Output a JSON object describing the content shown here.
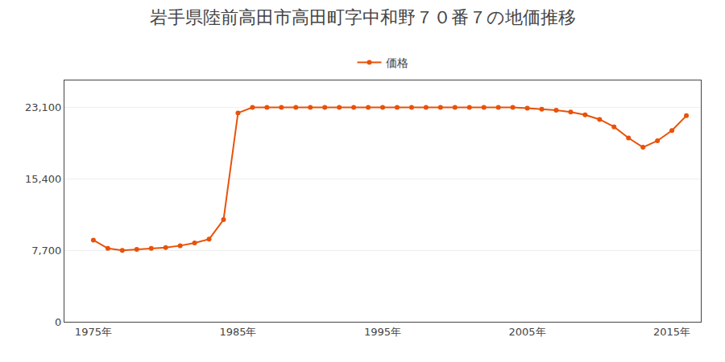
{
  "chart_data": {
    "type": "line",
    "title": "岩手県陸前高田市高田町字中和野７０番７の地価推移",
    "x": [
      1975,
      1976,
      1977,
      1978,
      1979,
      1980,
      1981,
      1982,
      1983,
      1984,
      1985,
      1986,
      1987,
      1988,
      1989,
      1990,
      1991,
      1992,
      1993,
      1994,
      1995,
      1996,
      1997,
      1998,
      1999,
      2000,
      2001,
      2002,
      2003,
      2004,
      2005,
      2006,
      2007,
      2008,
      2009,
      2010,
      2011,
      2012,
      2013,
      2014,
      2015,
      2016
    ],
    "series": [
      {
        "name": "価格",
        "color": "#e8520a",
        "marker": "circle",
        "values": [
          8800,
          7900,
          7700,
          7800,
          7900,
          8000,
          8200,
          8500,
          8900,
          11000,
          22500,
          23100,
          23100,
          23100,
          23100,
          23100,
          23100,
          23100,
          23100,
          23100,
          23100,
          23100,
          23100,
          23100,
          23100,
          23100,
          23100,
          23100,
          23100,
          23100,
          23000,
          22900,
          22800,
          22600,
          22300,
          21800,
          21000,
          19800,
          18800,
          19500,
          20600,
          22200
        ]
      }
    ],
    "xlim": [
      1973,
      2017
    ],
    "xticks": [
      {
        "value": 1975,
        "label": "1975年"
      },
      {
        "value": 1985,
        "label": "1985年"
      },
      {
        "value": 1995,
        "label": "1995年"
      },
      {
        "value": 2005,
        "label": "2005年"
      },
      {
        "value": 2015,
        "label": "2015年"
      }
    ],
    "ylim": [
      0,
      26000
    ],
    "yticks": [
      0,
      {
        "value": 7700,
        "label": "7,700"
      },
      {
        "value": 15400,
        "label": "15,400"
      },
      {
        "value": 23100,
        "label": "23,100"
      }
    ],
    "grid": "y",
    "legend": "top",
    "background_color": "#ffffff"
  }
}
